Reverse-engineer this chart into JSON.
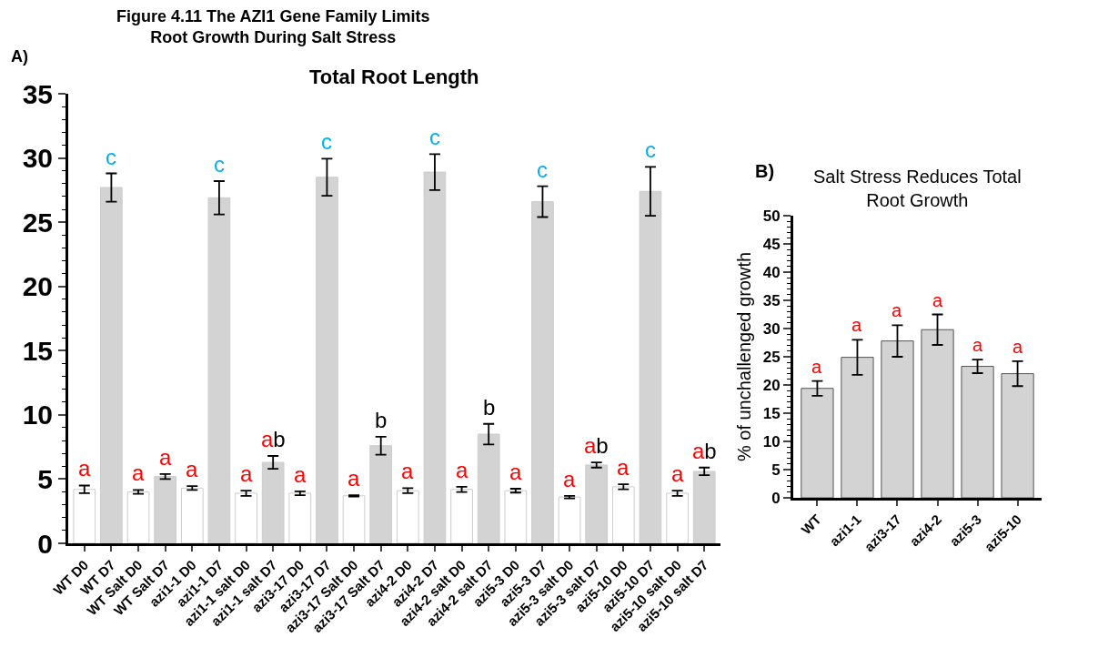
{
  "chart_data": [
    {
      "type": "bar",
      "title": "Total Root Length",
      "categories": [
        "WT D0",
        "WT D7",
        "WT Salt D0",
        "WT Salt D7",
        "azi1-1 D0",
        "azi1-1 D7",
        "azi1-1 salt D0",
        "azi1-1 salt D7",
        "azi3-17 D0",
        "azi3-17 D7",
        "azi3-17 Salt D0",
        "azi3-17 Salt D7",
        "azi4-2 D0",
        "azi4-2 D7",
        "azi4-2 salt D0",
        "azi4-2 salt D7",
        "azi5-3 D0",
        "azi5-3 D7",
        "azi5-3 salt D0",
        "azi5-3 salt D7",
        "azi5-10 D0",
        "azi5-10 D7",
        "azi5-10 salt D0",
        "azi5-10 salt D7"
      ],
      "values": [
        4.2,
        27.7,
        4.0,
        5.2,
        4.3,
        26.9,
        3.9,
        6.3,
        3.9,
        28.5,
        3.7,
        7.6,
        4.1,
        28.9,
        4.2,
        8.5,
        4.1,
        26.6,
        3.6,
        6.1,
        4.4,
        27.4,
        3.9,
        5.6
      ],
      "errors": [
        0.3,
        1.1,
        0.15,
        0.2,
        0.15,
        1.3,
        0.2,
        0.5,
        0.15,
        1.45,
        0.05,
        0.7,
        0.2,
        1.4,
        0.2,
        0.8,
        0.15,
        1.2,
        0.1,
        0.2,
        0.2,
        1.9,
        0.2,
        0.3
      ],
      "value_labels": [
        "a",
        "c",
        "a",
        "a",
        "a",
        "c",
        "a",
        "ab",
        "a",
        "c",
        "a",
        "b",
        "a",
        "c",
        "a",
        "b",
        "a",
        "c",
        "a",
        "ab",
        "a",
        "c",
        "a",
        "ab"
      ],
      "colors": [
        "#ffffff",
        "#d3d3d3",
        "#ffffff",
        "#d3d3d3",
        "#ffffff",
        "#d3d3d3",
        "#ffffff",
        "#d3d3d3",
        "#ffffff",
        "#d3d3d3",
        "#ffffff",
        "#d3d3d3",
        "#ffffff",
        "#d3d3d3",
        "#ffffff",
        "#d3d3d3",
        "#ffffff",
        "#d3d3d3",
        "#ffffff",
        "#d3d3d3",
        "#ffffff",
        "#d3d3d3",
        "#ffffff",
        "#d3d3d3"
      ],
      "ylim": [
        0,
        35
      ],
      "yticks": [
        0,
        5,
        10,
        15,
        20,
        25,
        30,
        35
      ],
      "grid": false,
      "annotations": [
        "Figure 4.11 The AZI1 Gene Family Limits\nRoot Growth During Salt Stress",
        "A)"
      ]
    },
    {
      "type": "bar",
      "title": "Salt Stress Reduces Total\nRoot Growth",
      "ylabel": "% of unchallenged growth",
      "categories": [
        "WT",
        "azi1-1",
        "azi3-17",
        "azi4-2",
        "azi5-3",
        "azi5-10"
      ],
      "values": [
        19.4,
        24.9,
        27.8,
        29.8,
        23.3,
        22.0
      ],
      "errors": [
        1.3,
        3.1,
        2.8,
        2.7,
        1.2,
        2.2
      ],
      "value_labels": [
        "a",
        "a",
        "a",
        "a",
        "a",
        "a"
      ],
      "colors": [
        "#d3d3d3",
        "#d3d3d3",
        "#d3d3d3",
        "#d3d3d3",
        "#d3d3d3",
        "#d3d3d3"
      ],
      "ylim": [
        0,
        50
      ],
      "yticks": [
        0,
        5,
        10,
        15,
        20,
        25,
        30,
        35,
        40,
        45,
        50
      ],
      "grid": false,
      "annotations": [
        "B)"
      ]
    }
  ]
}
